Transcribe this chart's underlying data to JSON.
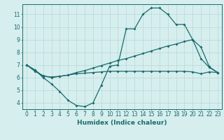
{
  "line1_x": [
    0,
    1,
    2,
    3,
    4,
    5,
    6,
    7,
    8,
    9,
    10,
    11,
    12,
    13,
    14,
    15,
    16,
    17,
    18,
    19,
    20,
    21,
    22,
    23
  ],
  "line1_y": [
    7.0,
    6.6,
    6.0,
    5.5,
    4.9,
    4.2,
    3.8,
    3.7,
    4.0,
    5.4,
    6.9,
    7.0,
    9.85,
    9.85,
    11.0,
    11.5,
    11.5,
    11.0,
    10.2,
    10.2,
    9.0,
    7.5,
    6.8,
    6.4
  ],
  "line2_x": [
    0,
    1,
    2,
    3,
    4,
    5,
    6,
    7,
    8,
    9,
    10,
    11,
    12,
    13,
    14,
    15,
    16,
    17,
    18,
    19,
    20,
    21,
    22,
    23
  ],
  "line2_y": [
    7.0,
    6.5,
    6.15,
    6.0,
    6.1,
    6.2,
    6.4,
    6.55,
    6.75,
    6.95,
    7.15,
    7.35,
    7.5,
    7.7,
    7.9,
    8.1,
    8.3,
    8.5,
    8.65,
    8.85,
    9.0,
    8.4,
    6.85,
    6.4
  ],
  "line3_x": [
    0,
    1,
    2,
    3,
    4,
    5,
    6,
    7,
    8,
    9,
    10,
    11,
    12,
    13,
    14,
    15,
    16,
    17,
    18,
    19,
    20,
    21,
    22,
    23
  ],
  "line3_y": [
    7.0,
    6.6,
    6.1,
    6.05,
    6.1,
    6.2,
    6.3,
    6.35,
    6.4,
    6.45,
    6.5,
    6.5,
    6.5,
    6.5,
    6.5,
    6.5,
    6.5,
    6.5,
    6.5,
    6.5,
    6.45,
    6.3,
    6.45,
    6.4
  ],
  "line_color": "#1a6b6b",
  "bg_color": "#d6eeee",
  "grid_color": "#b8d8d8",
  "xlabel": "Humidex (Indice chaleur)",
  "ylim": [
    3.5,
    11.8
  ],
  "xlim": [
    -0.5,
    23.5
  ],
  "yticks": [
    4,
    5,
    6,
    7,
    8,
    9,
    10,
    11
  ],
  "xticks": [
    0,
    1,
    2,
    3,
    4,
    5,
    6,
    7,
    8,
    9,
    10,
    11,
    12,
    13,
    14,
    15,
    16,
    17,
    18,
    19,
    20,
    21,
    22,
    23
  ],
  "marker": "D",
  "markersize": 2.0,
  "linewidth": 0.9,
  "xlabel_fontsize": 6.5,
  "tick_fontsize": 5.5
}
